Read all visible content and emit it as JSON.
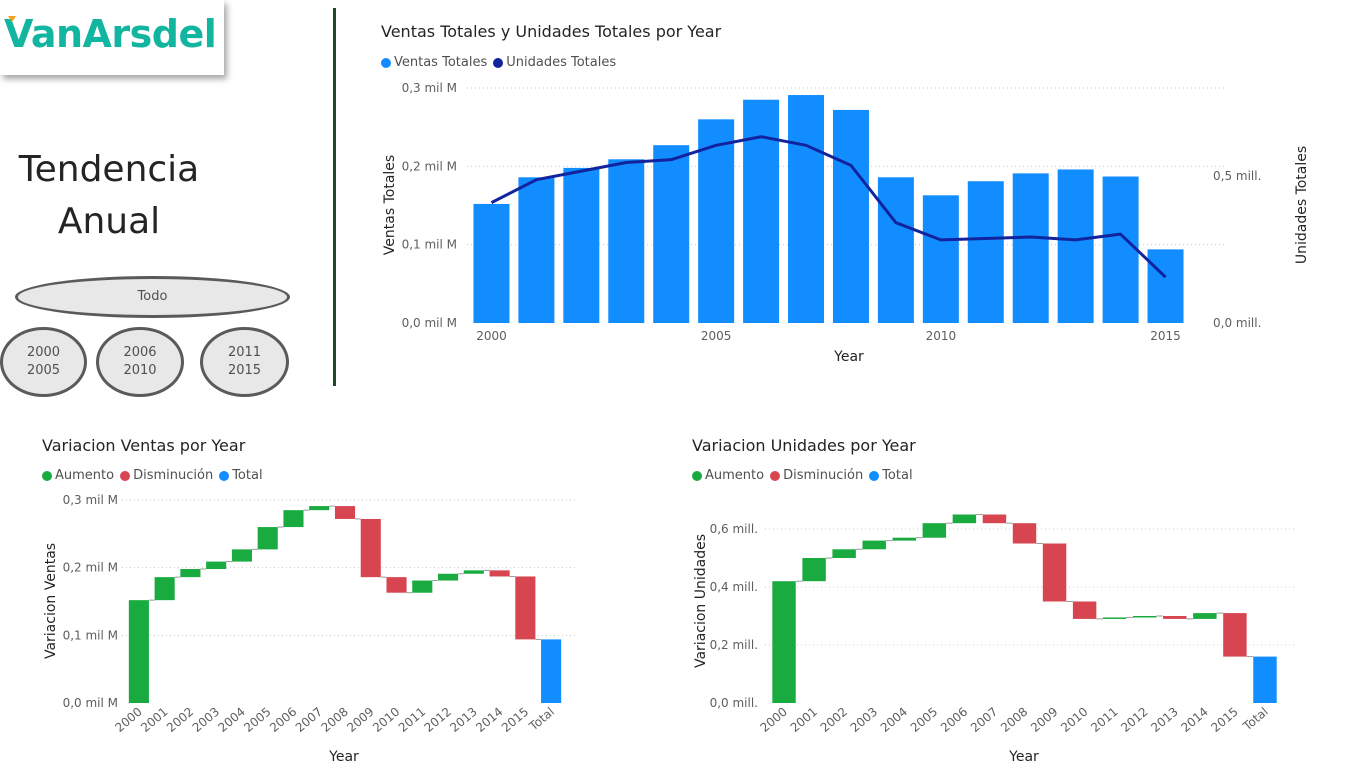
{
  "logo": {
    "text": "VanArsdel"
  },
  "page_title": {
    "line1": "Tendencia",
    "line2": "Anual"
  },
  "slicer": {
    "all": "Todo",
    "ranges": [
      {
        "line1": "2000",
        "line2": "2005"
      },
      {
        "line1": "2006",
        "line2": "2010"
      },
      {
        "line1": "2011",
        "line2": "2015"
      }
    ]
  },
  "colors": {
    "ventas_bar": "#118dff",
    "unidades_line": "#12239e",
    "aumento": "#1aab40",
    "disminucion": "#d64550",
    "total": "#118dff",
    "divider": "#1e4a2a",
    "logo": "#11b5a0"
  },
  "chart_data": [
    {
      "type": "bar",
      "title": "Ventas Totales y Unidades Totales por Year",
      "legend": [
        "Ventas Totales",
        "Unidades Totales"
      ],
      "xlabel": "Year",
      "ylabel": "Ventas Totales",
      "y2label": "Unidades Totales",
      "x_ticks": [
        "2000",
        "2005",
        "2010",
        "2015"
      ],
      "y_ticks": [
        "0,0 mil M",
        "0,1 mil M",
        "0,2 mil M",
        "0,3 mil M"
      ],
      "y2_ticks": [
        "0,0 mill.",
        "0,5 mill."
      ],
      "ylim": [
        0,
        0.3
      ],
      "y2lim": [
        0,
        0.82
      ],
      "categories": [
        "2000",
        "2001",
        "2002",
        "2003",
        "2004",
        "2005",
        "2006",
        "2007",
        "2008",
        "2009",
        "2010",
        "2011",
        "2012",
        "2013",
        "2014",
        "2015"
      ],
      "series": [
        {
          "name": "Ventas Totales",
          "type": "bar",
          "values": [
            0.152,
            0.186,
            0.198,
            0.209,
            0.227,
            0.26,
            0.285,
            0.291,
            0.272,
            0.186,
            0.163,
            0.181,
            0.191,
            0.196,
            0.187,
            0.094
          ]
        },
        {
          "name": "Unidades Totales",
          "type": "line",
          "values": [
            0.42,
            0.5,
            0.53,
            0.56,
            0.57,
            0.62,
            0.65,
            0.62,
            0.55,
            0.35,
            0.29,
            0.295,
            0.3,
            0.29,
            0.31,
            0.16
          ]
        }
      ]
    },
    {
      "type": "waterfall",
      "title": "Variacion Ventas por Year",
      "legend": [
        "Aumento",
        "Disminución",
        "Total"
      ],
      "xlabel": "Year",
      "ylabel": "Variacion Ventas",
      "y_ticks": [
        "0,0 mil M",
        "0,1 mil M",
        "0,2 mil M",
        "0,3 mil M"
      ],
      "ylim": [
        0,
        0.3
      ],
      "categories": [
        "2000",
        "2001",
        "2002",
        "2003",
        "2004",
        "2005",
        "2006",
        "2007",
        "2008",
        "2009",
        "2010",
        "2011",
        "2012",
        "2013",
        "2014",
        "2015",
        "Total"
      ],
      "cumulative": [
        0.152,
        0.186,
        0.198,
        0.209,
        0.227,
        0.26,
        0.285,
        0.291,
        0.272,
        0.186,
        0.163,
        0.181,
        0.191,
        0.196,
        0.187,
        0.094
      ],
      "total": 0.094
    },
    {
      "type": "waterfall",
      "title": "Variacion Unidades por Year",
      "legend": [
        "Aumento",
        "Disminución",
        "Total"
      ],
      "xlabel": "Year",
      "ylabel": "Variacion Unidades",
      "y_ticks": [
        "0,0 mill.",
        "0,2 mill.",
        "0,4 mill.",
        "0,6 mill."
      ],
      "ylim": [
        0,
        0.6
      ],
      "categories": [
        "2000",
        "2001",
        "2002",
        "2003",
        "2004",
        "2005",
        "2006",
        "2007",
        "2008",
        "2009",
        "2010",
        "2011",
        "2012",
        "2013",
        "2014",
        "2015",
        "Total"
      ],
      "cumulative": [
        0.42,
        0.5,
        0.53,
        0.56,
        0.57,
        0.62,
        0.65,
        0.62,
        0.55,
        0.35,
        0.29,
        0.295,
        0.3,
        0.29,
        0.31,
        0.16
      ],
      "total": 0.16
    }
  ]
}
